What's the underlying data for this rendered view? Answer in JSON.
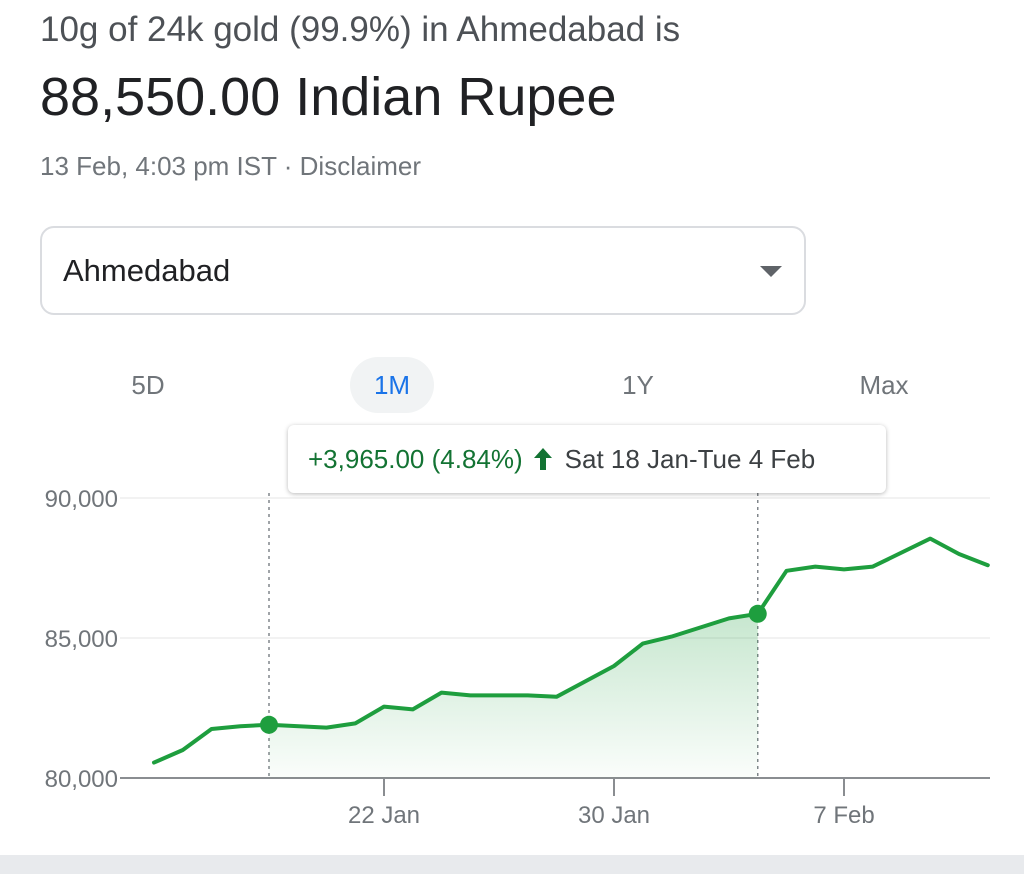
{
  "header": {
    "headline": "10g of 24k gold (99.9%) in Ahmedabad is",
    "price": "88,550.00 Indian Rupee",
    "timestamp": "13 Feb, 4:03 pm IST",
    "separator": " · ",
    "disclaimer_label": "Disclaimer"
  },
  "city_select": {
    "selected": "Ahmedabad"
  },
  "ranges": [
    {
      "label": "5D",
      "active": false
    },
    {
      "label": "1M",
      "active": true
    },
    {
      "label": "1Y",
      "active": false
    },
    {
      "label": "Max",
      "active": false
    }
  ],
  "tooltip": {
    "change": "+3,965.00 (4.84%)",
    "dates": "Sat 18 Jan-Tue 4 Feb"
  },
  "colors": {
    "line": "#1e9e3e",
    "positive_text": "#137333",
    "active_range": "#1a73e8"
  },
  "chart_data": {
    "type": "line",
    "title": "",
    "xlabel": "",
    "ylabel": "",
    "x": [
      "2025-01-14",
      "2025-01-15",
      "2025-01-16",
      "2025-01-17",
      "2025-01-18",
      "2025-01-20",
      "2025-01-21",
      "2025-01-22",
      "2025-01-23",
      "2025-01-24",
      "2025-01-25",
      "2025-01-27",
      "2025-01-28",
      "2025-01-29",
      "2025-01-30",
      "2025-01-31",
      "2025-02-01",
      "2025-02-03",
      "2025-02-04",
      "2025-02-05",
      "2025-02-06",
      "2025-02-07",
      "2025-02-08",
      "2025-02-10",
      "2025-02-11",
      "2025-02-12"
    ],
    "series": [
      {
        "values": [
          80550,
          81000,
          81750,
          81850,
          81900,
          81800,
          81950,
          82550,
          82450,
          83050,
          82950,
          82950,
          82900,
          83450,
          84000,
          84800,
          85050,
          85700,
          85865,
          87400,
          87550,
          87450,
          87550,
          88550,
          88000,
          87600
        ]
      }
    ],
    "y_ticks": [
      80000,
      85000,
      90000
    ],
    "y_tick_labels": [
      "80,000",
      "85,000",
      "90,000"
    ],
    "x_ticks": [
      "2025-01-22",
      "2025-01-30",
      "2025-02-07"
    ],
    "x_tick_labels": [
      "22 Jan",
      "30 Jan",
      "7 Feb"
    ],
    "ylim": [
      80000,
      90000
    ],
    "grid": true,
    "selection": {
      "start": "2025-01-18",
      "end": "2025-02-04"
    }
  }
}
